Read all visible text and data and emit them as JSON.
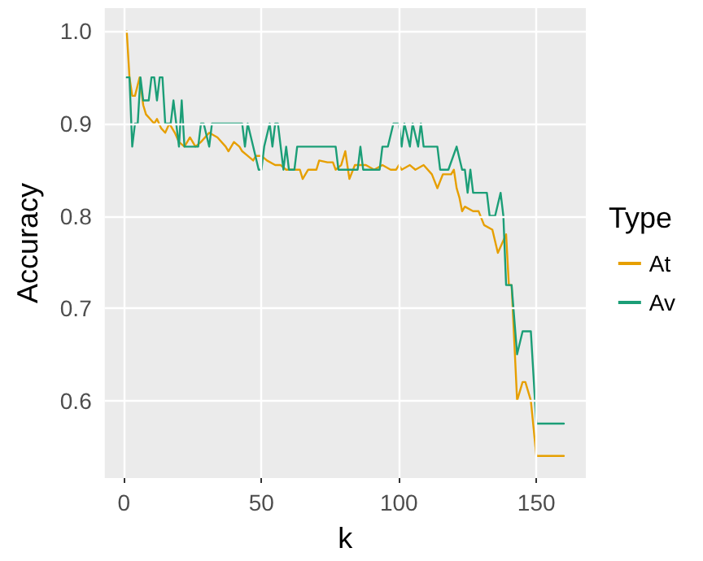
{
  "chart_data": {
    "type": "line",
    "xlabel": "k",
    "ylabel": "Accuracy",
    "legend_title": "Type",
    "legend": "right",
    "grid": true,
    "marker": "none",
    "line_style": "solid",
    "xlim": [
      -7,
      168
    ],
    "xticks": [
      0,
      50,
      100,
      150
    ],
    "ylim": [
      0.516,
      1.025
    ],
    "yticks": [
      {
        "value": 0.6,
        "label": "0.6"
      },
      {
        "value": 0.7,
        "label": "0.7"
      },
      {
        "value": 0.8,
        "label": "0.8"
      },
      {
        "value": 0.9,
        "label": "0.9"
      },
      {
        "value": 1,
        "label": "1.0"
      }
    ],
    "series": [
      {
        "name": "At",
        "color": "#e69f00",
        "x": [
          1,
          2,
          3,
          4,
          5.7,
          7,
          8,
          9.5,
          11,
          12,
          13.5,
          15,
          16.5,
          18.5,
          20,
          22,
          24,
          26,
          28,
          31,
          34,
          37,
          38,
          40,
          42,
          43,
          45,
          47,
          48,
          50,
          52,
          55,
          57,
          59,
          64,
          65,
          67,
          70,
          71,
          74,
          76,
          77,
          79,
          80.5,
          82,
          84,
          88,
          91,
          94,
          97,
          99,
          100,
          101,
          104,
          106,
          109,
          112,
          114,
          116,
          119,
          120,
          121,
          122,
          123,
          124,
          127,
          129,
          131,
          134,
          136,
          139,
          140,
          141,
          143,
          145,
          146,
          148,
          150,
          160
        ],
        "values": [
          1,
          0.95,
          0.93,
          0.93,
          0.95,
          0.92,
          0.91,
          0.905,
          0.9,
          0.905,
          0.895,
          0.89,
          0.9,
          0.89,
          0.88,
          0.875,
          0.885,
          0.875,
          0.88,
          0.89,
          0.885,
          0.875,
          0.87,
          0.88,
          0.875,
          0.87,
          0.865,
          0.86,
          0.865,
          0.865,
          0.86,
          0.855,
          0.855,
          0.85,
          0.85,
          0.84,
          0.85,
          0.85,
          0.86,
          0.858,
          0.858,
          0.85,
          0.855,
          0.87,
          0.84,
          0.855,
          0.855,
          0.85,
          0.855,
          0.85,
          0.85,
          0.855,
          0.85,
          0.855,
          0.85,
          0.855,
          0.845,
          0.83,
          0.845,
          0.845,
          0.85,
          0.83,
          0.82,
          0.805,
          0.81,
          0.805,
          0.805,
          0.79,
          0.785,
          0.76,
          0.78,
          0.725,
          0.725,
          0.6,
          0.62,
          0.62,
          0.6,
          0.54,
          0.54
        ]
      },
      {
        "name": "Av",
        "color": "#1b9e77",
        "x": [
          1,
          2,
          3,
          4,
          5,
          6,
          7,
          9,
          10,
          11,
          12,
          13,
          14,
          15,
          17,
          18,
          19,
          20,
          21,
          22,
          27,
          28,
          29,
          31,
          32,
          43,
          44,
          45,
          47,
          49,
          50,
          51,
          53,
          54,
          55,
          56,
          57,
          58,
          59,
          60,
          62,
          63,
          77,
          78,
          85,
          86,
          87,
          93,
          94,
          96,
          98,
          100,
          101,
          102,
          104,
          105,
          107,
          108,
          109,
          114,
          115,
          118,
          121,
          123,
          124,
          125,
          126,
          127,
          132,
          133,
          135,
          137,
          138,
          139,
          141,
          143,
          145,
          148,
          150,
          160
        ],
        "values": [
          0.95,
          0.95,
          0.875,
          0.9,
          0.9,
          0.95,
          0.925,
          0.925,
          0.95,
          0.95,
          0.925,
          0.95,
          0.95,
          0.9,
          0.9,
          0.925,
          0.9,
          0.875,
          0.925,
          0.875,
          0.875,
          0.9,
          0.9,
          0.875,
          0.9,
          0.9,
          0.875,
          0.9,
          0.875,
          0.85,
          0.85,
          0.875,
          0.9,
          0.875,
          0.9,
          0.9,
          0.875,
          0.85,
          0.875,
          0.85,
          0.85,
          0.875,
          0.875,
          0.85,
          0.85,
          0.875,
          0.85,
          0.85,
          0.875,
          0.875,
          0.9,
          0.9,
          0.875,
          0.9,
          0.875,
          0.9,
          0.875,
          0.9,
          0.875,
          0.875,
          0.85,
          0.85,
          0.875,
          0.85,
          0.85,
          0.825,
          0.85,
          0.825,
          0.825,
          0.8,
          0.8,
          0.825,
          0.8,
          0.725,
          0.725,
          0.65,
          0.675,
          0.675,
          0.575,
          0.575
        ]
      }
    ]
  }
}
